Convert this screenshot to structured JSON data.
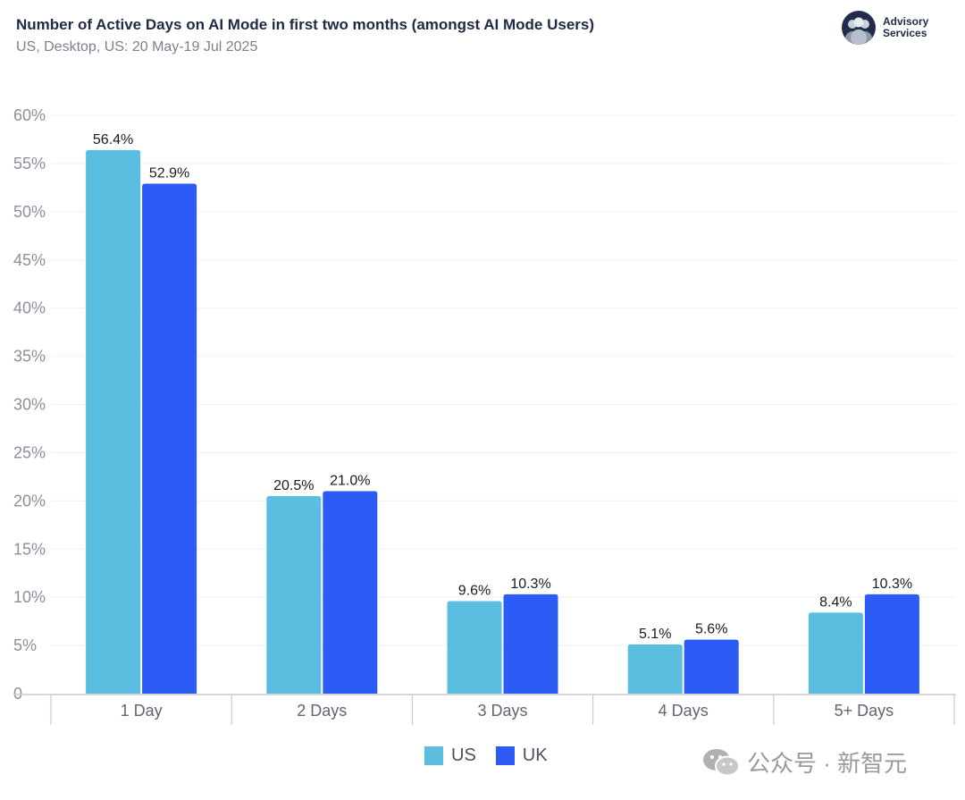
{
  "header": {
    "title": "Number of Active Days on AI Mode in first two months (amongst AI Mode Users)",
    "subtitle": "US, Desktop, US: 20 May-19 Jul 2025"
  },
  "logo": {
    "line1": "Advisory",
    "line2": "Services"
  },
  "watermark": {
    "text": "公众号 · 新智元"
  },
  "chart_data": {
    "type": "bar",
    "title": "Number of Active Days on AI Mode in first two months (amongst AI Mode Users)",
    "subtitle": "US, Desktop, US: 20 May-19 Jul 2025",
    "categories": [
      "1 Day",
      "2 Days",
      "3 Days",
      "4 Days",
      "5+ Days"
    ],
    "series": [
      {
        "name": "US",
        "color": "#5bbde0",
        "values": [
          56.4,
          20.5,
          9.6,
          5.1,
          8.4
        ],
        "labels": [
          "56.4%",
          "20.5%",
          "9.6%",
          "5.1%",
          "8.4%"
        ]
      },
      {
        "name": "UK",
        "color": "#2d5bf5",
        "values": [
          52.9,
          21.0,
          10.3,
          5.6,
          10.3
        ],
        "labels": [
          "52.9%",
          "21.0%",
          "10.3%",
          "5.6%",
          "10.3%"
        ]
      }
    ],
    "yticks": [
      "0",
      "5%",
      "10%",
      "15%",
      "20%",
      "25%",
      "30%",
      "35%",
      "40%",
      "45%",
      "50%",
      "55%",
      "60%"
    ],
    "ylim": [
      0,
      60
    ],
    "xlabel": "",
    "ylabel": "",
    "grid": true,
    "legend_position": "bottom-center"
  }
}
